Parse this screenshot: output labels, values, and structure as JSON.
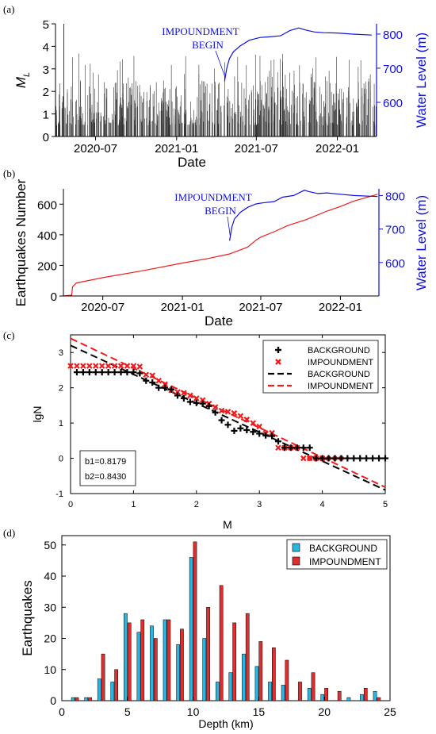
{
  "panels": [
    "(a)",
    "(b)",
    "(c)",
    "(d)"
  ],
  "chart_data": [
    {
      "type": "bar",
      "panel": "(a)",
      "xlabel": "Date",
      "ylabel": "M_L",
      "ylabel_main": "M",
      "ylabel_sub": "L",
      "y2label": "Water Level (m)",
      "xticks": [
        "2020-07",
        "2021-01",
        "2021-07",
        "2022-01"
      ],
      "xtick_dates": [
        "2020-07-01",
        "2021-01-01",
        "2021-07-01",
        "2022-01-01"
      ],
      "xlim": [
        "2020-04-01",
        "2022-03-31"
      ],
      "ylim": [
        0,
        5
      ],
      "yticks": [
        "0",
        "1",
        "2",
        "3",
        "4",
        "5"
      ],
      "y2lim": [
        500,
        830
      ],
      "y2ticks": [
        "600",
        "700",
        "800"
      ],
      "annotation": [
        "IMPOUNDMENT",
        "BEGIN"
      ],
      "events": {
        "description": "earthquake magnitudes shown as vertical stems",
        "approx_count": 660,
        "typical_range": [
          0.5,
          2.5
        ],
        "max_magnitude": 5.0,
        "max_magnitude_date": "2020-04-20"
      },
      "series": [
        {
          "name": "Water Level",
          "color": "#1010e0",
          "x": [
            "2021-04-20",
            "2021-04-25",
            "2021-05-01",
            "2021-05-10",
            "2021-05-25",
            "2021-06-15",
            "2021-07-10",
            "2021-08-01",
            "2021-08-25",
            "2021-09-15",
            "2021-10-05",
            "2021-10-20",
            "2021-11-10",
            "2021-12-01",
            "2022-01-01",
            "2022-02-01",
            "2022-03-20"
          ],
          "values": [
            662,
            700,
            728,
            748,
            765,
            782,
            790,
            792,
            795,
            810,
            818,
            812,
            806,
            804,
            803,
            800,
            797
          ]
        }
      ]
    },
    {
      "type": "line",
      "panel": "(b)",
      "xlabel": "Date",
      "ylabel": "Earthquakes Number",
      "y2label": "Water Level (m)",
      "xticks": [
        "2020-07",
        "2021-01",
        "2021-07",
        "2022-01"
      ],
      "xtick_dates": [
        "2020-07-01",
        "2021-01-01",
        "2021-07-01",
        "2022-01-01"
      ],
      "xlim": [
        "2020-04-01",
        "2022-03-31"
      ],
      "ylim": [
        0,
        700
      ],
      "yticks": [
        "0",
        "200",
        "400",
        "600"
      ],
      "y2lim": [
        500,
        820
      ],
      "y2ticks": [
        "600",
        "700",
        "800"
      ],
      "annotation": [
        "IMPOUNDMENT",
        "BEGIN"
      ],
      "series": [
        {
          "name": "Earthquakes Number",
          "color": "#ee1c1c",
          "x": [
            "2020-04-01",
            "2020-04-20",
            "2020-04-22",
            "2020-05-01",
            "2020-07-01",
            "2020-10-01",
            "2021-01-01",
            "2021-03-01",
            "2021-04-20",
            "2021-06-01",
            "2021-06-20",
            "2021-07-01",
            "2021-08-01",
            "2021-09-01",
            "2021-10-15",
            "2021-12-01",
            "2022-01-01",
            "2022-02-01",
            "2022-03-28"
          ],
          "values": [
            0,
            5,
            60,
            85,
            120,
            165,
            215,
            245,
            275,
            320,
            365,
            385,
            420,
            460,
            500,
            555,
            585,
            620,
            665
          ]
        },
        {
          "name": "Water Level",
          "color": "#1010e0",
          "x": [
            "2021-04-20",
            "2021-04-25",
            "2021-05-01",
            "2021-05-15",
            "2021-06-01",
            "2021-06-20",
            "2021-07-05",
            "2021-08-01",
            "2021-08-20",
            "2021-09-15",
            "2021-10-10",
            "2021-10-20",
            "2021-11-10",
            "2021-12-01",
            "2022-01-01",
            "2022-02-01",
            "2022-03-28"
          ],
          "values": [
            665,
            705,
            730,
            750,
            765,
            775,
            778,
            782,
            795,
            800,
            816,
            812,
            806,
            808,
            804,
            800,
            797
          ]
        }
      ]
    },
    {
      "type": "scatter",
      "panel": "(c)",
      "xlabel": "M",
      "ylabel": "lgN",
      "xlim": [
        0,
        5
      ],
      "ylim": [
        -1,
        3.5
      ],
      "xticks": [
        "0",
        "1",
        "2",
        "3",
        "4",
        "5"
      ],
      "yticks": [
        "-1",
        "0",
        "1",
        "2",
        "3"
      ],
      "legend_position": "top-right",
      "annotations": [
        "b1=0.8179",
        "b2=0.8430"
      ],
      "series": [
        {
          "name": "BACKGROUND",
          "marker": "plus",
          "color": "#000000",
          "x": [
            0.1,
            0.2,
            0.3,
            0.4,
            0.5,
            0.6,
            0.7,
            0.8,
            0.9,
            1.0,
            1.1,
            1.2,
            1.3,
            1.4,
            1.5,
            1.6,
            1.7,
            1.8,
            1.9,
            2.0,
            2.1,
            2.2,
            2.3,
            2.4,
            2.5,
            2.6,
            2.7,
            2.8,
            2.9,
            3.0,
            3.1,
            3.2,
            3.3,
            3.4,
            3.5,
            3.6,
            3.7,
            3.8,
            3.9,
            4.0,
            4.1,
            4.2,
            4.3,
            4.4,
            4.5,
            4.6,
            4.7,
            4.8,
            4.9,
            5.0
          ],
          "values": [
            2.44,
            2.44,
            2.44,
            2.44,
            2.44,
            2.44,
            2.44,
            2.44,
            2.44,
            2.44,
            2.41,
            2.2,
            2.15,
            2.0,
            2.0,
            1.95,
            1.78,
            1.7,
            1.6,
            1.57,
            1.55,
            1.48,
            1.3,
            1.08,
            0.95,
            0.78,
            0.85,
            0.8,
            0.75,
            0.7,
            0.65,
            0.63,
            0.48,
            0.3,
            0.3,
            0.3,
            0.3,
            0.3,
            0.0,
            0.0,
            0.0,
            0.0,
            0.0,
            0.0,
            0.0,
            0.0,
            0.0,
            0.0,
            0.0,
            0.0
          ]
        },
        {
          "name": "IMPOUNDMENT",
          "marker": "x",
          "color": "#ee1c1c",
          "x": [
            0.0,
            0.1,
            0.2,
            0.3,
            0.4,
            0.5,
            0.6,
            0.7,
            0.8,
            0.9,
            1.0,
            1.1,
            1.2,
            1.3,
            1.4,
            1.5,
            1.6,
            1.7,
            1.8,
            1.9,
            2.0,
            2.1,
            2.2,
            2.3,
            2.4,
            2.5,
            2.6,
            2.7,
            2.8,
            2.9,
            3.0,
            3.1,
            3.2,
            3.3,
            3.4,
            3.5,
            3.6,
            3.7,
            3.8,
            3.9,
            4.0
          ],
          "values": [
            2.62,
            2.62,
            2.62,
            2.62,
            2.62,
            2.62,
            2.62,
            2.62,
            2.62,
            2.62,
            2.62,
            2.6,
            2.37,
            2.35,
            2.2,
            2.1,
            1.93,
            1.88,
            1.85,
            1.78,
            1.7,
            1.65,
            1.55,
            1.45,
            1.35,
            1.32,
            1.28,
            1.2,
            1.1,
            1.0,
            0.9,
            0.7,
            0.72,
            0.3,
            0.3,
            0.3,
            0.3,
            0.0,
            0.0,
            0.0,
            0.0
          ]
        },
        {
          "name": "IMPOUNDMENT",
          "marker": "circle",
          "color": "#ee1c1c",
          "x": [
            3.4,
            3.5,
            3.6,
            3.8,
            3.9,
            4.0,
            4.1,
            4.2,
            4.3
          ],
          "values": [
            0.3,
            0.3,
            0.3,
            0.0,
            0.0,
            0.0,
            0.0,
            0.0,
            0.0
          ]
        },
        {
          "name": "BACKGROUND",
          "type": "line",
          "style": "dashed",
          "color": "#000000",
          "x": [
            0,
            5
          ],
          "values": [
            3.2,
            -0.9
          ]
        },
        {
          "name": "IMPOUNDMENT",
          "type": "line",
          "style": "dashed",
          "color": "#ee1c1c",
          "x": [
            0,
            5
          ],
          "values": [
            3.4,
            -0.82
          ]
        }
      ]
    },
    {
      "type": "bar",
      "panel": "(d)",
      "xlabel": "Depth (km)",
      "ylabel": "Earthquakes",
      "xlim": [
        0,
        25
      ],
      "ylim": [
        0,
        53
      ],
      "xticks": [
        "0",
        "5",
        "10",
        "15",
        "20",
        "25"
      ],
      "yticks": [
        "0",
        "10",
        "20",
        "30",
        "40",
        "50"
      ],
      "legend_position": "top-right",
      "categories": [
        1,
        2,
        3,
        4,
        5,
        6,
        7,
        8,
        9,
        10,
        11,
        12,
        13,
        14,
        15,
        16,
        17,
        18,
        19,
        20,
        21,
        22,
        23,
        24
      ],
      "series": [
        {
          "name": "BACKGROUND",
          "color": "#29b6e3",
          "values": [
            1,
            1,
            7,
            6,
            28,
            22,
            24,
            26,
            18,
            46,
            20,
            6,
            9,
            15,
            11,
            6,
            5,
            0,
            4,
            2,
            0,
            1,
            2,
            3
          ]
        },
        {
          "name": "IMPOUNDMENT",
          "color": "#dd2f2f",
          "values": [
            1,
            1,
            15,
            10,
            25,
            26,
            20,
            26,
            23,
            51,
            30,
            37,
            25,
            28,
            19,
            17,
            13,
            6,
            9,
            4,
            3,
            0,
            4,
            1
          ]
        }
      ]
    }
  ]
}
